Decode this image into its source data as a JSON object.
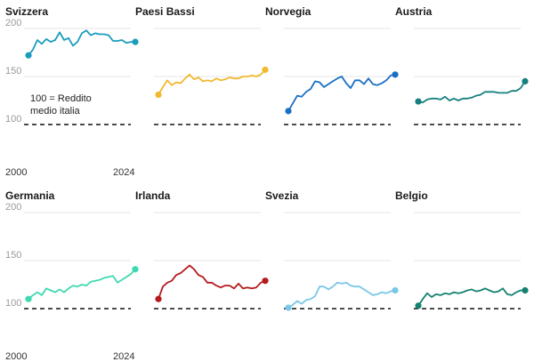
{
  "chart_data": [
    {
      "type": "line",
      "title": "Svizzera",
      "color": "#1a9cbd",
      "ylim": [
        100,
        200
      ],
      "yticks": [
        100,
        150,
        200
      ],
      "show_yticks": true,
      "xlabels": [
        "2000",
        "2024"
      ],
      "annotation": [
        "100 = Reddito",
        "medio italia"
      ],
      "x": [
        2000,
        2001,
        2002,
        2003,
        2004,
        2005,
        2006,
        2007,
        2008,
        2009,
        2010,
        2011,
        2012,
        2013,
        2014,
        2015,
        2016,
        2017,
        2018,
        2019,
        2020,
        2021,
        2022,
        2023,
        2024
      ],
      "values": [
        172,
        178,
        188,
        184,
        189,
        186,
        188,
        196,
        188,
        190,
        182,
        186,
        195,
        198,
        193,
        195,
        194,
        194,
        193,
        187,
        187,
        188,
        185,
        186,
        186
      ]
    },
    {
      "type": "line",
      "title": "Paesi Bassi",
      "color": "#f1b92e",
      "ylim": [
        100,
        200
      ],
      "yticks": [
        100,
        150,
        200
      ],
      "show_yticks": false,
      "xlabels": [],
      "x": [
        2000,
        2001,
        2002,
        2003,
        2004,
        2005,
        2006,
        2007,
        2008,
        2009,
        2010,
        2011,
        2012,
        2013,
        2014,
        2015,
        2016,
        2017,
        2018,
        2019,
        2020,
        2021,
        2022,
        2023,
        2024
      ],
      "values": [
        131,
        139,
        146,
        141,
        144,
        143,
        148,
        152,
        147,
        149,
        145,
        146,
        145,
        148,
        146,
        147,
        149,
        148,
        148,
        150,
        150,
        151,
        150,
        152,
        157
      ]
    },
    {
      "type": "line",
      "title": "Norvegia",
      "color": "#1a6fc4",
      "ylim": [
        100,
        200
      ],
      "yticks": [
        100,
        150,
        200
      ],
      "show_yticks": false,
      "xlabels": [],
      "x": [
        2000,
        2001,
        2002,
        2003,
        2004,
        2005,
        2006,
        2007,
        2008,
        2009,
        2010,
        2011,
        2012,
        2013,
        2014,
        2015,
        2016,
        2017,
        2018,
        2019,
        2020,
        2021,
        2022,
        2023,
        2024
      ],
      "values": [
        114,
        122,
        130,
        129,
        134,
        137,
        145,
        144,
        139,
        142,
        145,
        148,
        150,
        143,
        138,
        146,
        146,
        142,
        148,
        142,
        141,
        143,
        146,
        151,
        152
      ]
    },
    {
      "type": "line",
      "title": "Austria",
      "color": "#17807f",
      "ylim": [
        100,
        200
      ],
      "yticks": [
        100,
        150,
        200
      ],
      "show_yticks": false,
      "xlabels": [],
      "x": [
        2000,
        2001,
        2002,
        2003,
        2004,
        2005,
        2006,
        2007,
        2008,
        2009,
        2010,
        2011,
        2012,
        2013,
        2014,
        2015,
        2016,
        2017,
        2018,
        2019,
        2020,
        2021,
        2022,
        2023,
        2024
      ],
      "values": [
        124,
        123,
        126,
        127,
        127,
        126,
        129,
        125,
        127,
        125,
        127,
        127,
        128,
        130,
        131,
        134,
        134,
        134,
        133,
        133,
        133,
        135,
        135,
        138,
        145
      ]
    },
    {
      "type": "line",
      "title": "Germania",
      "color": "#3fd9b1",
      "ylim": [
        100,
        200
      ],
      "yticks": [
        100,
        150,
        200
      ],
      "show_yticks": true,
      "xlabels": [
        "2000",
        "2024"
      ],
      "x": [
        2000,
        2001,
        2002,
        2003,
        2004,
        2005,
        2006,
        2007,
        2008,
        2009,
        2010,
        2011,
        2012,
        2013,
        2014,
        2015,
        2016,
        2017,
        2018,
        2019,
        2020,
        2021,
        2022,
        2023,
        2024
      ],
      "values": [
        110,
        114,
        117,
        114,
        121,
        119,
        117,
        120,
        117,
        121,
        124,
        123,
        125,
        124,
        128,
        129,
        130,
        132,
        133,
        134,
        127,
        130,
        133,
        136,
        141
      ]
    },
    {
      "type": "line",
      "title": "Irlanda",
      "color": "#b41a1c",
      "ylim": [
        100,
        200
      ],
      "yticks": [
        100,
        150,
        200
      ],
      "show_yticks": false,
      "xlabels": [],
      "x": [
        2000,
        2001,
        2002,
        2003,
        2004,
        2005,
        2006,
        2007,
        2008,
        2009,
        2010,
        2011,
        2012,
        2013,
        2014,
        2015,
        2016,
        2017,
        2018,
        2019,
        2020,
        2021,
        2022,
        2023,
        2024
      ],
      "values": [
        110,
        123,
        127,
        129,
        135,
        137,
        141,
        145,
        141,
        135,
        133,
        127,
        127,
        124,
        122,
        124,
        124,
        121,
        126,
        121,
        122,
        121,
        122,
        127,
        129
      ]
    },
    {
      "type": "line",
      "title": "Svezia",
      "color": "#79c8e8",
      "ylim": [
        100,
        200
      ],
      "yticks": [
        100,
        150,
        200
      ],
      "show_yticks": false,
      "xlabels": [],
      "x": [
        2000,
        2001,
        2002,
        2003,
        2004,
        2005,
        2006,
        2007,
        2008,
        2009,
        2010,
        2011,
        2012,
        2013,
        2014,
        2015,
        2016,
        2017,
        2018,
        2019,
        2020,
        2021,
        2022,
        2023,
        2024
      ],
      "values": [
        101,
        104,
        108,
        105,
        109,
        110,
        113,
        123,
        123,
        120,
        123,
        127,
        126,
        127,
        124,
        123,
        123,
        120,
        117,
        114,
        115,
        117,
        116,
        118,
        119
      ]
    },
    {
      "type": "line",
      "title": "Belgio",
      "color": "#138270",
      "ylim": [
        100,
        200
      ],
      "yticks": [
        100,
        150,
        200
      ],
      "show_yticks": false,
      "xlabels": [],
      "x": [
        2000,
        2001,
        2002,
        2003,
        2004,
        2005,
        2006,
        2007,
        2008,
        2009,
        2010,
        2011,
        2012,
        2013,
        2014,
        2015,
        2016,
        2017,
        2018,
        2019,
        2020,
        2021,
        2022,
        2023,
        2024
      ],
      "values": [
        103,
        110,
        116,
        112,
        115,
        114,
        116,
        115,
        117,
        116,
        117,
        119,
        120,
        118,
        119,
        121,
        119,
        117,
        118,
        121,
        115,
        114,
        117,
        119,
        119
      ]
    }
  ]
}
